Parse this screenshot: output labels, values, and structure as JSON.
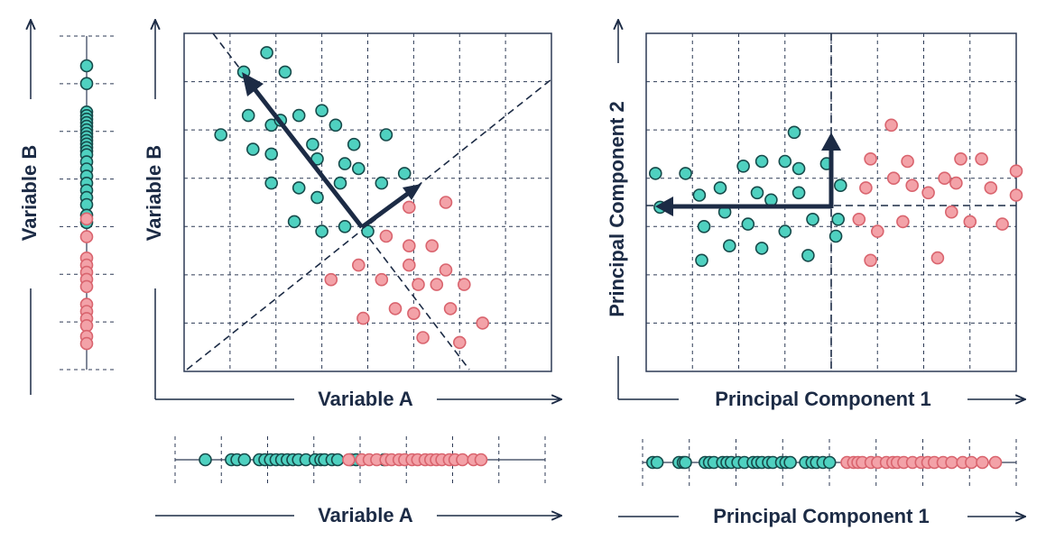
{
  "colors": {
    "ink": "#1c2b45",
    "grid": "#2d3a55",
    "teal_fill": "#4fd1c0",
    "teal_stroke": "#164a4a",
    "pink_fill": "#f3a2a8",
    "pink_stroke": "#d9646e"
  },
  "labels": {
    "left_1d_y": "Variable B",
    "scatter_x": "Variable A",
    "scatter_y": "Variable B",
    "bottom_1d_x": "Variable A",
    "pca_x": "Principal Component 1",
    "pca_y": "Principal Component 2",
    "pca_1d_x": "Principal Component 1"
  },
  "chart_data": [
    {
      "type": "scatter",
      "panel": "original-variables",
      "xlabel": "Variable A",
      "ylabel": "Variable B",
      "xlim": [
        0,
        8
      ],
      "ylim": [
        0,
        7
      ],
      "grid": true,
      "series": [
        {
          "color": "teal",
          "points": [
            [
              0.8,
              4.9
            ],
            [
              1.3,
              6.2
            ],
            [
              1.8,
              6.6
            ],
            [
              2.2,
              6.2
            ],
            [
              1.4,
              5.3
            ],
            [
              1.9,
              5.1
            ],
            [
              1.5,
              4.6
            ],
            [
              1.9,
              4.5
            ],
            [
              2.1,
              5.2
            ],
            [
              2.5,
              5.3
            ],
            [
              3.0,
              5.4
            ],
            [
              3.3,
              5.1
            ],
            [
              2.8,
              4.7
            ],
            [
              3.7,
              4.7
            ],
            [
              2.9,
              4.4
            ],
            [
              3.5,
              4.3
            ],
            [
              3.8,
              4.2
            ],
            [
              4.4,
              4.9
            ],
            [
              4.8,
              4.1
            ],
            [
              1.9,
              3.9
            ],
            [
              2.5,
              3.8
            ],
            [
              3.4,
              3.9
            ],
            [
              2.9,
              3.6
            ],
            [
              4.3,
              3.9
            ],
            [
              2.4,
              3.1
            ],
            [
              3.0,
              2.9
            ],
            [
              3.5,
              3.0
            ],
            [
              4.0,
              2.9
            ]
          ]
        },
        {
          "color": "pink",
          "points": [
            [
              4.9,
              3.4
            ],
            [
              5.7,
              3.5
            ],
            [
              4.4,
              2.8
            ],
            [
              4.9,
              2.6
            ],
            [
              5.4,
              2.6
            ],
            [
              3.8,
              2.2
            ],
            [
              4.9,
              2.2
            ],
            [
              5.7,
              2.1
            ],
            [
              3.2,
              1.9
            ],
            [
              4.3,
              1.9
            ],
            [
              5.1,
              1.8
            ],
            [
              5.5,
              1.8
            ],
            [
              6.1,
              1.8
            ],
            [
              4.6,
              1.3
            ],
            [
              5.0,
              1.2
            ],
            [
              5.8,
              1.3
            ],
            [
              3.9,
              1.1
            ],
            [
              6.5,
              1.0
            ],
            [
              5.2,
              0.7
            ],
            [
              6.0,
              0.6
            ]
          ]
        }
      ],
      "annotations": {
        "center": [
          3.9,
          3.0
        ],
        "pc1_direction": [
          -2.6,
          3.2
        ],
        "pc2_direction": [
          1.2,
          0.9
        ],
        "dashed_axes": true
      }
    },
    {
      "type": "scatter",
      "panel": "principal-components",
      "xlabel": "Principal Component 1",
      "ylabel": "Principal Component 2",
      "xlim": [
        -8,
        8
      ],
      "ylim": [
        -7,
        7
      ],
      "grid": true,
      "series": [
        {
          "color": "teal",
          "points": [
            [
              -7.6,
              1.2
            ],
            [
              -6.3,
              1.2
            ],
            [
              -7.4,
              -0.2
            ],
            [
              -5.7,
              0.3
            ],
            [
              -5.5,
              -1.0
            ],
            [
              -5.6,
              -2.4
            ],
            [
              -4.8,
              0.6
            ],
            [
              -4.6,
              -0.4
            ],
            [
              -4.4,
              -1.8
            ],
            [
              -3.8,
              1.5
            ],
            [
              -3.6,
              -0.9
            ],
            [
              -3.2,
              0.4
            ],
            [
              -3.0,
              1.7
            ],
            [
              -3.0,
              -1.9
            ],
            [
              -2.6,
              0.1
            ],
            [
              -2.0,
              1.7
            ],
            [
              -2.0,
              -1.2
            ],
            [
              -1.6,
              2.9
            ],
            [
              -1.4,
              1.4
            ],
            [
              -1.4,
              0.4
            ],
            [
              -1.0,
              -2.2
            ],
            [
              -0.8,
              -0.7
            ],
            [
              -0.2,
              1.6
            ],
            [
              0.2,
              -1.4
            ],
            [
              0.3,
              -0.7
            ],
            [
              0.4,
              0.7
            ]
          ]
        },
        {
          "color": "pink",
          "points": [
            [
              1.2,
              -0.7
            ],
            [
              1.5,
              0.6
            ],
            [
              1.7,
              1.8
            ],
            [
              1.7,
              -2.4
            ],
            [
              2.0,
              -1.2
            ],
            [
              2.6,
              3.2
            ],
            [
              2.7,
              1.0
            ],
            [
              3.3,
              1.7
            ],
            [
              3.5,
              0.7
            ],
            [
              3.1,
              -0.8
            ],
            [
              4.2,
              0.4
            ],
            [
              4.6,
              -2.3
            ],
            [
              4.9,
              1.0
            ],
            [
              5.4,
              0.8
            ],
            [
              5.6,
              1.8
            ],
            [
              5.2,
              -0.4
            ],
            [
              6.0,
              -0.8
            ],
            [
              6.5,
              1.8
            ],
            [
              6.9,
              0.6
            ],
            [
              7.4,
              -0.9
            ],
            [
              8.0,
              1.3
            ],
            [
              8.0,
              0.3
            ]
          ]
        }
      ],
      "annotations": {
        "pc1_arrow_to": [
          -7.7,
          0
        ],
        "pc2_arrow_to": [
          0,
          2.9
        ],
        "dashed_axes": true
      }
    }
  ],
  "strips": {
    "left": {
      "teal": [
        0.2,
        1.2,
        2.8,
        3.0,
        3.2,
        3.4,
        3.6,
        3.8,
        4.0,
        4.2,
        4.4,
        4.6,
        4.8,
        5.0,
        5.2,
        5.6,
        6.0,
        6.4,
        6.8,
        7.2,
        7.6,
        8.0,
        8.6,
        9.0
      ],
      "pink": [
        8.8,
        9.8,
        11.0,
        11.4,
        11.8,
        12.2,
        12.6,
        13.6,
        14.0,
        14.4,
        14.8,
        15.4,
        15.8
      ]
    },
    "bottom_a": {
      "teal": [
        -0.8,
        0.6,
        0.9,
        1.3,
        2.1,
        2.4,
        2.7,
        3.0,
        3.3,
        3.6,
        3.9,
        4.2,
        4.6,
        5.1,
        5.4,
        5.6,
        6.0,
        6.3,
        7.0,
        7.3,
        8.8
      ],
      "pink": [
        6.9,
        7.6,
        8.0,
        8.4,
        8.9,
        9.2,
        9.6,
        9.9,
        10.3,
        10.6,
        11.0,
        11.3,
        11.6,
        11.9,
        12.3,
        12.6,
        13.0,
        13.6,
        14.0
      ]
    },
    "bottom_pc": {
      "teal": [
        -7.7,
        -7.5,
        -6.5,
        -6.3,
        -6.2,
        -5.3,
        -5.1,
        -4.9,
        -4.5,
        -4.3,
        -4.1,
        -3.8,
        -3.5,
        -3.1,
        -2.9,
        -2.7,
        -2.4,
        -2.2,
        -1.8,
        -1.6,
        -1.4,
        -0.7,
        -0.4,
        -0.2,
        0.1,
        0.4
      ],
      "pink": [
        1.2,
        1.5,
        1.7,
        1.9,
        2.3,
        2.6,
        3.0,
        3.3,
        3.5,
        3.8,
        4.2,
        4.6,
        4.9,
        5.2,
        5.6,
        6.0,
        6.5,
        6.9,
        7.4,
        8.0
      ]
    }
  }
}
